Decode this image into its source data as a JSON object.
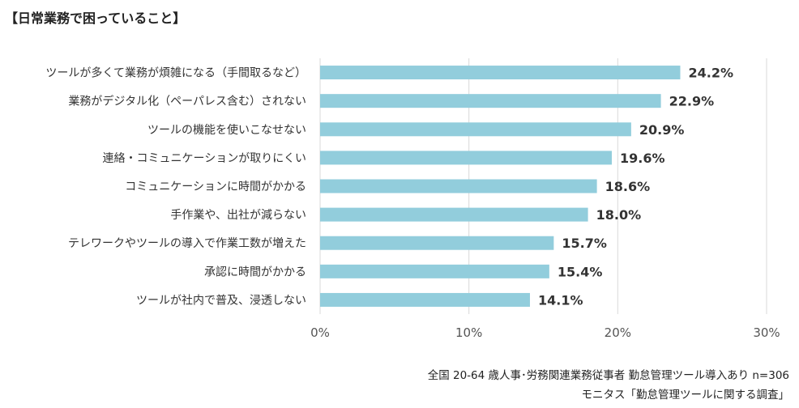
{
  "title": "【日常業務で困っていること】",
  "chart_data": {
    "type": "bar",
    "orientation": "horizontal",
    "categories": [
      "ツールが多くて業務が煩雑になる（手間取るなど）",
      "業務がデジタル化（ペーパレス含む）されない",
      "ツールの機能を使いこなせない",
      "連絡・コミュニケーションが取りにくい",
      "コミュニケーションに時間がかかる",
      "手作業や、出社が減らない",
      "テレワークやツールの導入で作業工数が増えた",
      "承認に時間がかかる",
      "ツールが社内で普及、浸透しない"
    ],
    "values": [
      24.2,
      22.9,
      20.9,
      19.6,
      18.6,
      18.0,
      15.7,
      15.4,
      14.1
    ],
    "value_labels": [
      "24.2%",
      "22.9%",
      "20.9%",
      "19.6%",
      "18.6%",
      "18.0%",
      "15.7%",
      "15.4%",
      "14.1%"
    ],
    "xlim": [
      0,
      30
    ],
    "xticks": [
      0,
      10,
      20,
      30
    ],
    "xtick_labels": [
      "0%",
      "10%",
      "20%",
      "30%"
    ],
    "grid": true,
    "bar_color": "#92CDDC",
    "grid_color": "#D9D9D9"
  },
  "footnotes": [
    "全国 20-64 歳人事･労務関連業務従事者 勤怠管理ツール導入あり n=306",
    "モニタス「勤怠管理ツールに関する調査」"
  ]
}
